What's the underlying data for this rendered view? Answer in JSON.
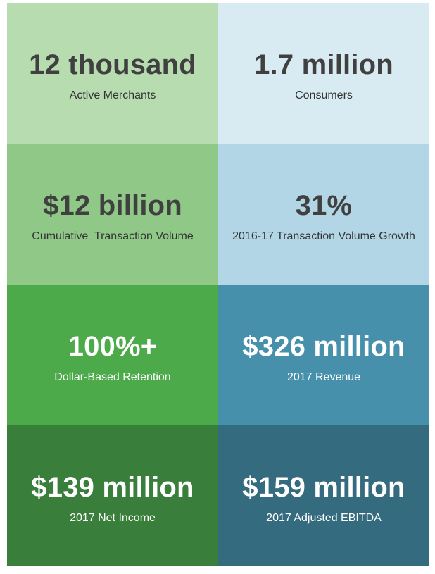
{
  "tiles": [
    {
      "value": "12 thousand",
      "label": "Active Merchants",
      "color": "#b6dcaf"
    },
    {
      "value": "1.7 million",
      "label": "Consumers",
      "color": "#d8eaf2"
    },
    {
      "value": "$12 billion",
      "label": "Cumulative  Transaction Volume",
      "color": "#90c888"
    },
    {
      "value": "31%",
      "label": "2016-17 Transaction Volume Growth",
      "color": "#b3d6e6"
    },
    {
      "value": "100%+",
      "label": "Dollar-Based Retention",
      "color": "#4daa4a"
    },
    {
      "value": "$326 million",
      "label": "2017 Revenue",
      "color": "#4690ab"
    },
    {
      "value": "$139 million",
      "label": "2017 Net Income",
      "color": "#3a7e3c"
    },
    {
      "value": "$159 million",
      "label": "2017 Adjusted EBITDA",
      "color": "#356b7e"
    }
  ]
}
